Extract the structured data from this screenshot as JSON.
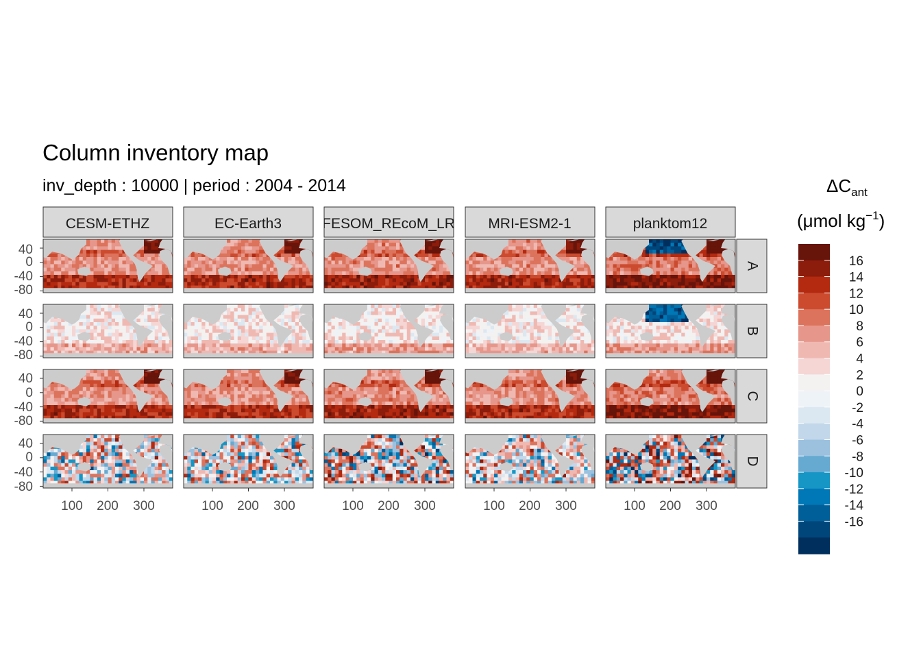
{
  "chart_data": {
    "type": "heatmap",
    "title": "Column inventory map",
    "subtitle": "inv_depth : 10000 | period : 2004 - 2014",
    "legend": {
      "title_main": "ΔC",
      "title_sub": "ant",
      "units_prefix": "(μmol kg",
      "units_exp": "−1",
      "units_suffix": ")",
      "position": "right",
      "labels": [
        "16",
        "14",
        "12",
        "10",
        "8",
        "6",
        "4",
        "2",
        "0",
        "-2",
        "-4",
        "-6",
        "-8",
        "-10",
        "-12",
        "-14",
        "-16"
      ],
      "colors": [
        "#67140b",
        "#8c1c0b",
        "#b32a10",
        "#cc4b2f",
        "#dc735c",
        "#e6968a",
        "#efb9b2",
        "#f5d6d4",
        "#f4f1f1",
        "#eef3f7",
        "#dce8f1",
        "#c2d7ea",
        "#9bc1df",
        "#66a9d1",
        "#1596c5",
        "#0077b6",
        "#005f99",
        "#00467a",
        "#002f5e"
      ]
    },
    "facet_cols": [
      "CESM-ETHZ",
      "EC-Earth3",
      "FESOM_REcoM_LR",
      "MRI-ESM2-1",
      "planktom12"
    ],
    "facet_rows": [
      "A",
      "B",
      "C",
      "D"
    ],
    "x_ticks": [
      "100",
      "200",
      "300"
    ],
    "y_ticks": [
      "40",
      "0",
      "-40",
      "-80"
    ],
    "xlim": [
      20,
      380
    ],
    "ylim": [
      -85,
      65
    ],
    "land_color": "#cccccc",
    "panel_intensity": [
      [
        0.45,
        0.5,
        0.55,
        0.5,
        0.75
      ],
      [
        0.08,
        0.05,
        0.2,
        0.03,
        0.3
      ],
      [
        0.5,
        0.45,
        0.55,
        0.5,
        0.7
      ],
      [
        0.2,
        0.2,
        0.4,
        0.2,
        0.55
      ]
    ]
  }
}
